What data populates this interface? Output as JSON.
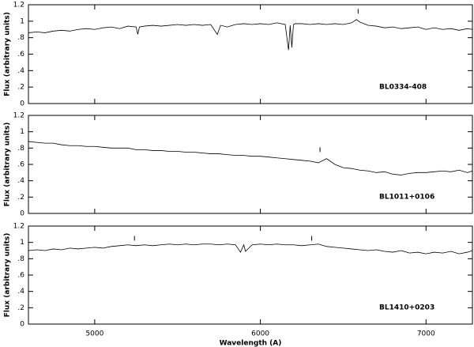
{
  "chart_data": [
    {
      "type": "line",
      "ylabel": "Flux (arbitrary units)",
      "annotation": "BL0334-408",
      "xlim": [
        4600,
        7280
      ],
      "xticks": [
        5000,
        6000,
        7000
      ],
      "ylim": [
        0,
        1.2
      ],
      "yticks": [
        0,
        {
          "value": 0.2,
          "label": ".2"
        },
        {
          "value": 0.4,
          "label": ".4"
        },
        {
          "value": 0.6,
          "label": ".6"
        },
        {
          "value": 0.8,
          "label": ".8"
        },
        1,
        1.2
      ],
      "x": [
        4600,
        4650,
        4700,
        4750,
        4800,
        4850,
        4900,
        4950,
        5000,
        5050,
        5100,
        5150,
        5200,
        5250,
        5260,
        5270,
        5300,
        5350,
        5400,
        5450,
        5500,
        5550,
        5600,
        5650,
        5700,
        5740,
        5760,
        5800,
        5850,
        5900,
        5950,
        6000,
        6050,
        6100,
        6150,
        6170,
        6180,
        6190,
        6200,
        6210,
        6250,
        6300,
        6350,
        6400,
        6450,
        6500,
        6550,
        6580,
        6600,
        6650,
        6700,
        6750,
        6800,
        6850,
        6900,
        6950,
        7000,
        7050,
        7100,
        7150,
        7200,
        7250,
        7280
      ],
      "series": [
        {
          "color": "#000000",
          "values": [
            0.86,
            0.87,
            0.86,
            0.88,
            0.89,
            0.88,
            0.9,
            0.91,
            0.9,
            0.92,
            0.93,
            0.91,
            0.94,
            0.93,
            0.84,
            0.93,
            0.94,
            0.95,
            0.94,
            0.95,
            0.96,
            0.95,
            0.96,
            0.95,
            0.96,
            0.84,
            0.95,
            0.93,
            0.96,
            0.97,
            0.96,
            0.97,
            0.96,
            0.98,
            0.96,
            0.65,
            0.95,
            0.68,
            0.96,
            0.97,
            0.97,
            0.96,
            0.97,
            0.96,
            0.97,
            0.96,
            0.98,
            1.02,
            0.99,
            0.95,
            0.94,
            0.92,
            0.93,
            0.91,
            0.92,
            0.93,
            0.9,
            0.92,
            0.9,
            0.91,
            0.89,
            0.91,
            0.9
          ]
        }
      ],
      "feature_marks": {
        "x": [
          6590
        ],
        "y": [
          1.12
        ]
      }
    },
    {
      "type": "line",
      "ylabel": "Flux (arbitrary units)",
      "annotation": "BL1011+0106",
      "xlim": [
        4600,
        7280
      ],
      "xticks": [
        5000,
        6000,
        7000
      ],
      "ylim": [
        0,
        1.2
      ],
      "yticks": [
        0,
        {
          "value": 0.2,
          "label": ".2"
        },
        {
          "value": 0.4,
          "label": ".4"
        },
        {
          "value": 0.6,
          "label": ".6"
        },
        {
          "value": 0.8,
          "label": ".8"
        },
        1,
        1.2
      ],
      "x": [
        4600,
        4650,
        4700,
        4750,
        4800,
        4850,
        4900,
        4950,
        5000,
        5050,
        5100,
        5150,
        5200,
        5250,
        5300,
        5350,
        5400,
        5450,
        5500,
        5550,
        5600,
        5650,
        5700,
        5750,
        5800,
        5850,
        5900,
        5950,
        6000,
        6050,
        6100,
        6150,
        6200,
        6250,
        6300,
        6350,
        6400,
        6450,
        6500,
        6550,
        6600,
        6650,
        6700,
        6750,
        6800,
        6850,
        6900,
        6950,
        7000,
        7050,
        7100,
        7150,
        7200,
        7250,
        7280
      ],
      "series": [
        {
          "color": "#000000",
          "values": [
            0.88,
            0.87,
            0.86,
            0.86,
            0.84,
            0.83,
            0.83,
            0.82,
            0.82,
            0.81,
            0.8,
            0.8,
            0.8,
            0.78,
            0.78,
            0.77,
            0.77,
            0.76,
            0.76,
            0.75,
            0.75,
            0.74,
            0.73,
            0.73,
            0.72,
            0.71,
            0.71,
            0.7,
            0.7,
            0.69,
            0.68,
            0.67,
            0.66,
            0.65,
            0.64,
            0.62,
            0.67,
            0.6,
            0.56,
            0.55,
            0.53,
            0.52,
            0.5,
            0.51,
            0.48,
            0.47,
            0.49,
            0.5,
            0.5,
            0.51,
            0.52,
            0.51,
            0.53,
            0.5,
            0.52
          ]
        }
      ],
      "feature_marks": {
        "x": [
          6360
        ],
        "y": [
          0.78
        ]
      }
    },
    {
      "type": "line",
      "ylabel": "Flux (arbitrary units)",
      "annotation": "BL1410+0203",
      "xlabel": "Wavelength (A)",
      "xlim": [
        4600,
        7280
      ],
      "xticks": [
        5000,
        6000,
        7000
      ],
      "ylim": [
        0,
        1.2
      ],
      "yticks": [
        0,
        {
          "value": 0.2,
          "label": ".2"
        },
        {
          "value": 0.4,
          "label": ".4"
        },
        {
          "value": 0.6,
          "label": ".6"
        },
        {
          "value": 0.8,
          "label": ".8"
        },
        1,
        1.2
      ],
      "x": [
        4600,
        4650,
        4700,
        4750,
        4800,
        4850,
        4900,
        4950,
        5000,
        5050,
        5100,
        5150,
        5200,
        5250,
        5300,
        5350,
        5400,
        5450,
        5500,
        5550,
        5600,
        5650,
        5700,
        5750,
        5800,
        5850,
        5880,
        5900,
        5910,
        5950,
        6000,
        6050,
        6100,
        6150,
        6200,
        6250,
        6300,
        6350,
        6400,
        6450,
        6500,
        6550,
        6600,
        6650,
        6700,
        6750,
        6800,
        6850,
        6900,
        6950,
        7000,
        7050,
        7100,
        7150,
        7200,
        7250,
        7280
      ],
      "series": [
        {
          "color": "#000000",
          "values": [
            0.9,
            0.91,
            0.9,
            0.92,
            0.91,
            0.93,
            0.92,
            0.93,
            0.94,
            0.93,
            0.95,
            0.96,
            0.97,
            0.96,
            0.97,
            0.96,
            0.97,
            0.98,
            0.97,
            0.98,
            0.97,
            0.98,
            0.98,
            0.97,
            0.98,
            0.97,
            0.88,
            0.97,
            0.89,
            0.97,
            0.98,
            0.97,
            0.98,
            0.97,
            0.97,
            0.96,
            0.97,
            0.98,
            0.95,
            0.94,
            0.93,
            0.92,
            0.91,
            0.9,
            0.91,
            0.89,
            0.88,
            0.9,
            0.87,
            0.88,
            0.86,
            0.88,
            0.87,
            0.89,
            0.86,
            0.88,
            0.9
          ]
        }
      ],
      "feature_marks": {
        "x": [
          5240,
          6310
        ],
        "y": [
          1.05,
          1.05
        ]
      }
    }
  ]
}
